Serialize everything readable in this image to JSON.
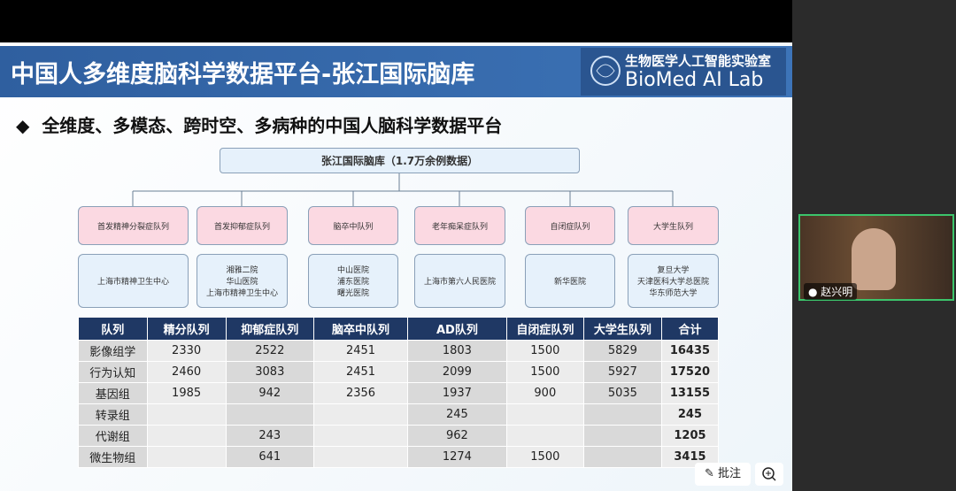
{
  "slide": {
    "title": "中国人多维度脑科学数据平台-张江国际脑库",
    "logo_cn": "生物医学人工智能实验室",
    "logo_en": "BioMed AI Lab",
    "bullet": "全维度、多模态、跨时空、多病种的中国人脑科学数据平台"
  },
  "tree": {
    "root": "张江国际脑库（1.7万余例数据）",
    "cohorts": [
      {
        "name": "首发精神分裂症队列",
        "sites": [
          "上海市精神卫生中心"
        ]
      },
      {
        "name": "首发抑郁症队列",
        "sites": [
          "湘雅二院",
          "华山医院",
          "上海市精神卫生中心"
        ]
      },
      {
        "name": "脑卒中队列",
        "sites": [
          "中山医院",
          "浦东医院",
          "曙光医院"
        ]
      },
      {
        "name": "老年痴呆症队列",
        "sites": [
          "上海市第六人民医院"
        ]
      },
      {
        "name": "自闭症队列",
        "sites": [
          "新华医院"
        ]
      },
      {
        "name": "大学生队列",
        "sites": [
          "复旦大学",
          "天津医科大学总医院",
          "华东师范大学"
        ]
      }
    ]
  },
  "table": {
    "header": [
      "队列",
      "精分队列",
      "抑郁症队列",
      "脑卒中队列",
      "AD队列",
      "自闭症队列",
      "大学生队列",
      "合计"
    ],
    "rows": [
      [
        "影像组学",
        2330,
        2522,
        2451,
        1803,
        1500,
        5829,
        16435
      ],
      [
        "行为认知",
        2460,
        3083,
        2451,
        2099,
        1500,
        5927,
        17520
      ],
      [
        "基因组",
        1985,
        942,
        2356,
        1937,
        900,
        5035,
        13155
      ],
      [
        "转录组",
        null,
        null,
        null,
        245,
        null,
        null,
        245
      ],
      [
        "代谢组",
        null,
        243,
        null,
        962,
        null,
        null,
        1205
      ],
      [
        "微生物组",
        null,
        641,
        null,
        1274,
        1500,
        null,
        3415
      ]
    ]
  },
  "meeting": {
    "participant": "赵兴明",
    "annotate": "批注"
  }
}
